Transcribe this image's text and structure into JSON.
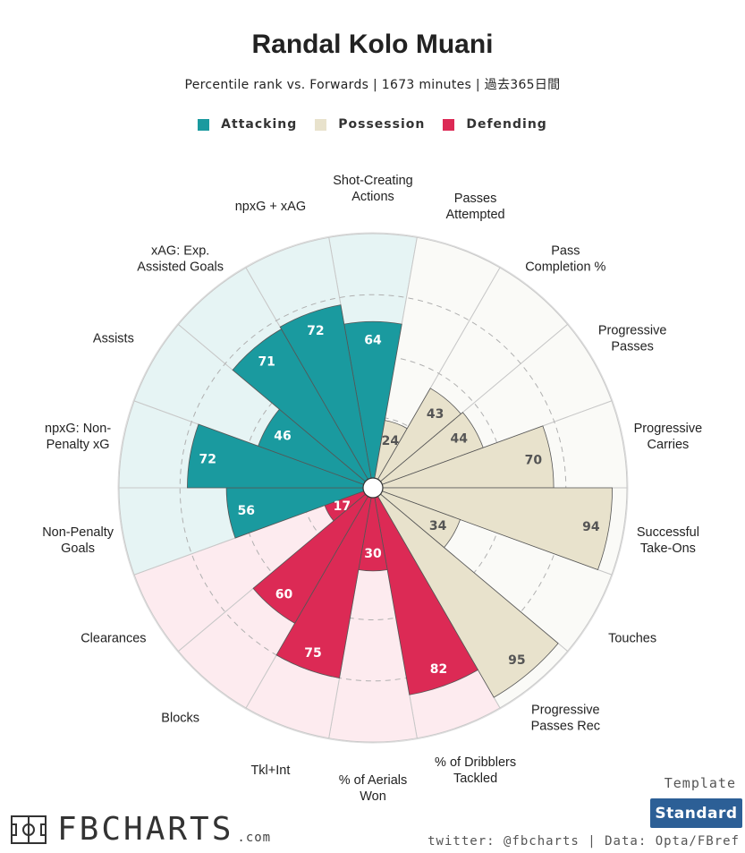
{
  "header": {
    "title": "Randal Kolo Muani",
    "subtitle": "Percentile rank vs. Forwards | 1673 minutes | 過去365日間"
  },
  "legend": [
    {
      "label": "Attacking",
      "color": "#1a9a9f"
    },
    {
      "label": "Possession",
      "color": "#e8e2cc"
    },
    {
      "label": "Defending",
      "color": "#dc2a55"
    }
  ],
  "chart_data": {
    "type": "polar-bar",
    "range": [
      0,
      100
    ],
    "grid": true,
    "gridlines": [
      25,
      50,
      75
    ],
    "categories": [
      {
        "label": "Shot-Creating\nActions",
        "value": 64,
        "group": "Attacking"
      },
      {
        "label": "Passes\nAttempted",
        "value": 24,
        "group": "Possession"
      },
      {
        "label": "Pass\nCompletion %",
        "value": 43,
        "group": "Possession"
      },
      {
        "label": "Progressive\nPasses",
        "value": 44,
        "group": "Possession"
      },
      {
        "label": "Progressive\nCarries",
        "value": 70,
        "group": "Possession"
      },
      {
        "label": "Successful\nTake-Ons",
        "value": 94,
        "group": "Possession"
      },
      {
        "label": "Touches",
        "value": 34,
        "group": "Possession"
      },
      {
        "label": "Progressive\nPasses Rec",
        "value": 95,
        "group": "Possession"
      },
      {
        "label": "% of Dribblers\nTackled",
        "value": 82,
        "group": "Defending"
      },
      {
        "label": "% of Aerials\nWon",
        "value": 30,
        "group": "Defending"
      },
      {
        "label": "Tkl+Int",
        "value": 75,
        "group": "Defending"
      },
      {
        "label": "Blocks",
        "value": 60,
        "group": "Defending"
      },
      {
        "label": "Clearances",
        "value": 17,
        "group": "Defending"
      },
      {
        "label": "Non-Penalty\nGoals",
        "value": 56,
        "group": "Attacking"
      },
      {
        "label": "npxG: Non-\nPenalty xG",
        "value": 72,
        "group": "Attacking"
      },
      {
        "label": "Assists",
        "value": 46,
        "group": "Attacking"
      },
      {
        "label": "xAG: Exp.\nAssisted Goals",
        "value": 71,
        "group": "Attacking"
      },
      {
        "label": "npxG + xAG",
        "value": 72,
        "group": "Attacking"
      }
    ],
    "colors": {
      "Attacking": {
        "bar": "#1a9a9f",
        "background": "#e6f4f4",
        "text": "#ffffff"
      },
      "Possession": {
        "bar": "#e8e2cc",
        "background": "#fafaf7",
        "text": "#555555"
      },
      "Defending": {
        "bar": "#dc2a55",
        "background": "#fdebef",
        "text": "#ffffff"
      }
    }
  },
  "footer": {
    "template_caption": "Template",
    "template_button": "Standard",
    "credits": "twitter: @fbcharts | Data: Opta/FBref",
    "logo_text": "FBCHARTS",
    "logo_domain": ".com",
    "logo_icon": "football-pitch-icon"
  }
}
